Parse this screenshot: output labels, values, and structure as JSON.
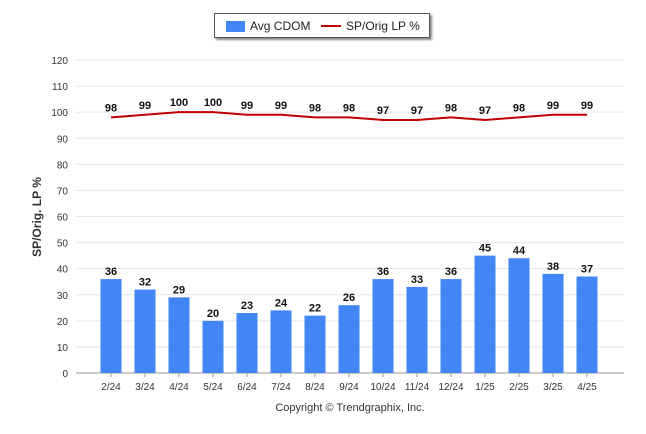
{
  "chart_data": {
    "type": "bar",
    "categories": [
      "2/24",
      "3/24",
      "4/24",
      "5/24",
      "6/24",
      "7/24",
      "8/24",
      "9/24",
      "10/24",
      "11/24",
      "12/24",
      "1/25",
      "2/25",
      "3/25",
      "4/25"
    ],
    "series": [
      {
        "name": "Avg CDOM",
        "type": "bar",
        "color": "#4285f4",
        "values": [
          36,
          32,
          29,
          20,
          23,
          24,
          22,
          26,
          36,
          33,
          36,
          45,
          44,
          38,
          37
        ]
      },
      {
        "name": "SP/Orig LP %",
        "type": "line",
        "color": "#c00000",
        "values": [
          98,
          99,
          100,
          100,
          99,
          99,
          98,
          98,
          97,
          97,
          98,
          97,
          98,
          99,
          99
        ]
      }
    ],
    "ylabel": "SP/Orig. LP %",
    "ylim": [
      0,
      120
    ],
    "yticks": [
      0,
      10,
      20,
      30,
      40,
      50,
      60,
      70,
      80,
      90,
      100,
      110,
      120
    ],
    "grid": true,
    "legend_position": "top-center"
  },
  "legend": {
    "bar_label": "Avg CDOM",
    "line_label": "SP/Orig LP %"
  },
  "footer": {
    "copyright": "Copyright © Trendgraphix, Inc."
  }
}
